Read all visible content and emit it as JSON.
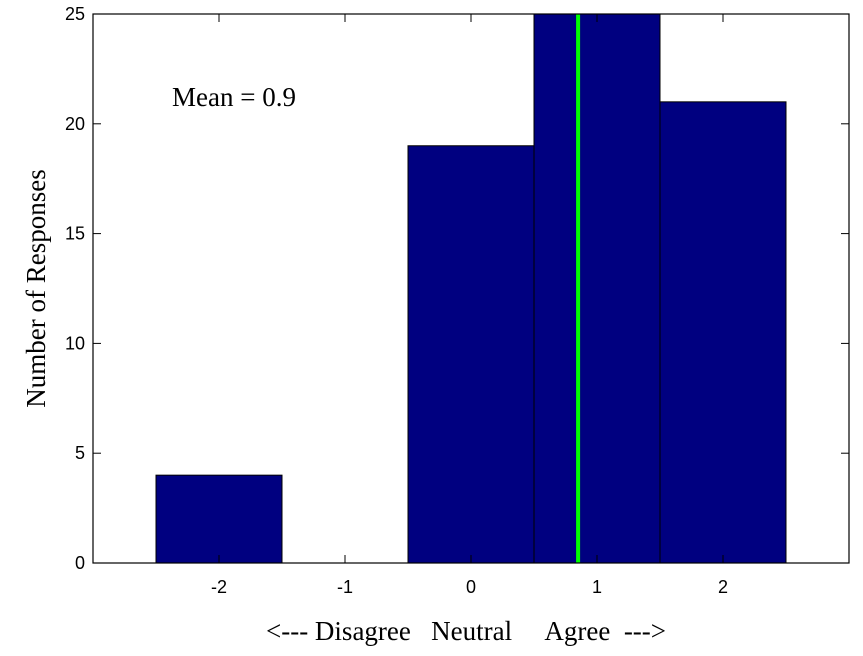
{
  "chart_data": {
    "type": "bar",
    "title": "",
    "xlabel": "<--- Disagree   Neutral     Agree  --->",
    "ylabel": "Number of Responses",
    "categories": [
      -2,
      -1,
      0,
      1,
      2
    ],
    "values": [
      4,
      0,
      19,
      25,
      21
    ],
    "x_ticks": [
      "-2",
      "-1",
      "0",
      "1",
      "2"
    ],
    "y_ticks": [
      "0",
      "5",
      "10",
      "15",
      "20",
      "25"
    ],
    "xlim": [
      -3,
      3
    ],
    "ylim": [
      0,
      25
    ],
    "grid": false,
    "bar_color": "#000080",
    "mean_line": {
      "x": 0.85,
      "color": "#00ff00"
    },
    "annotation": "Mean = 0.9"
  }
}
